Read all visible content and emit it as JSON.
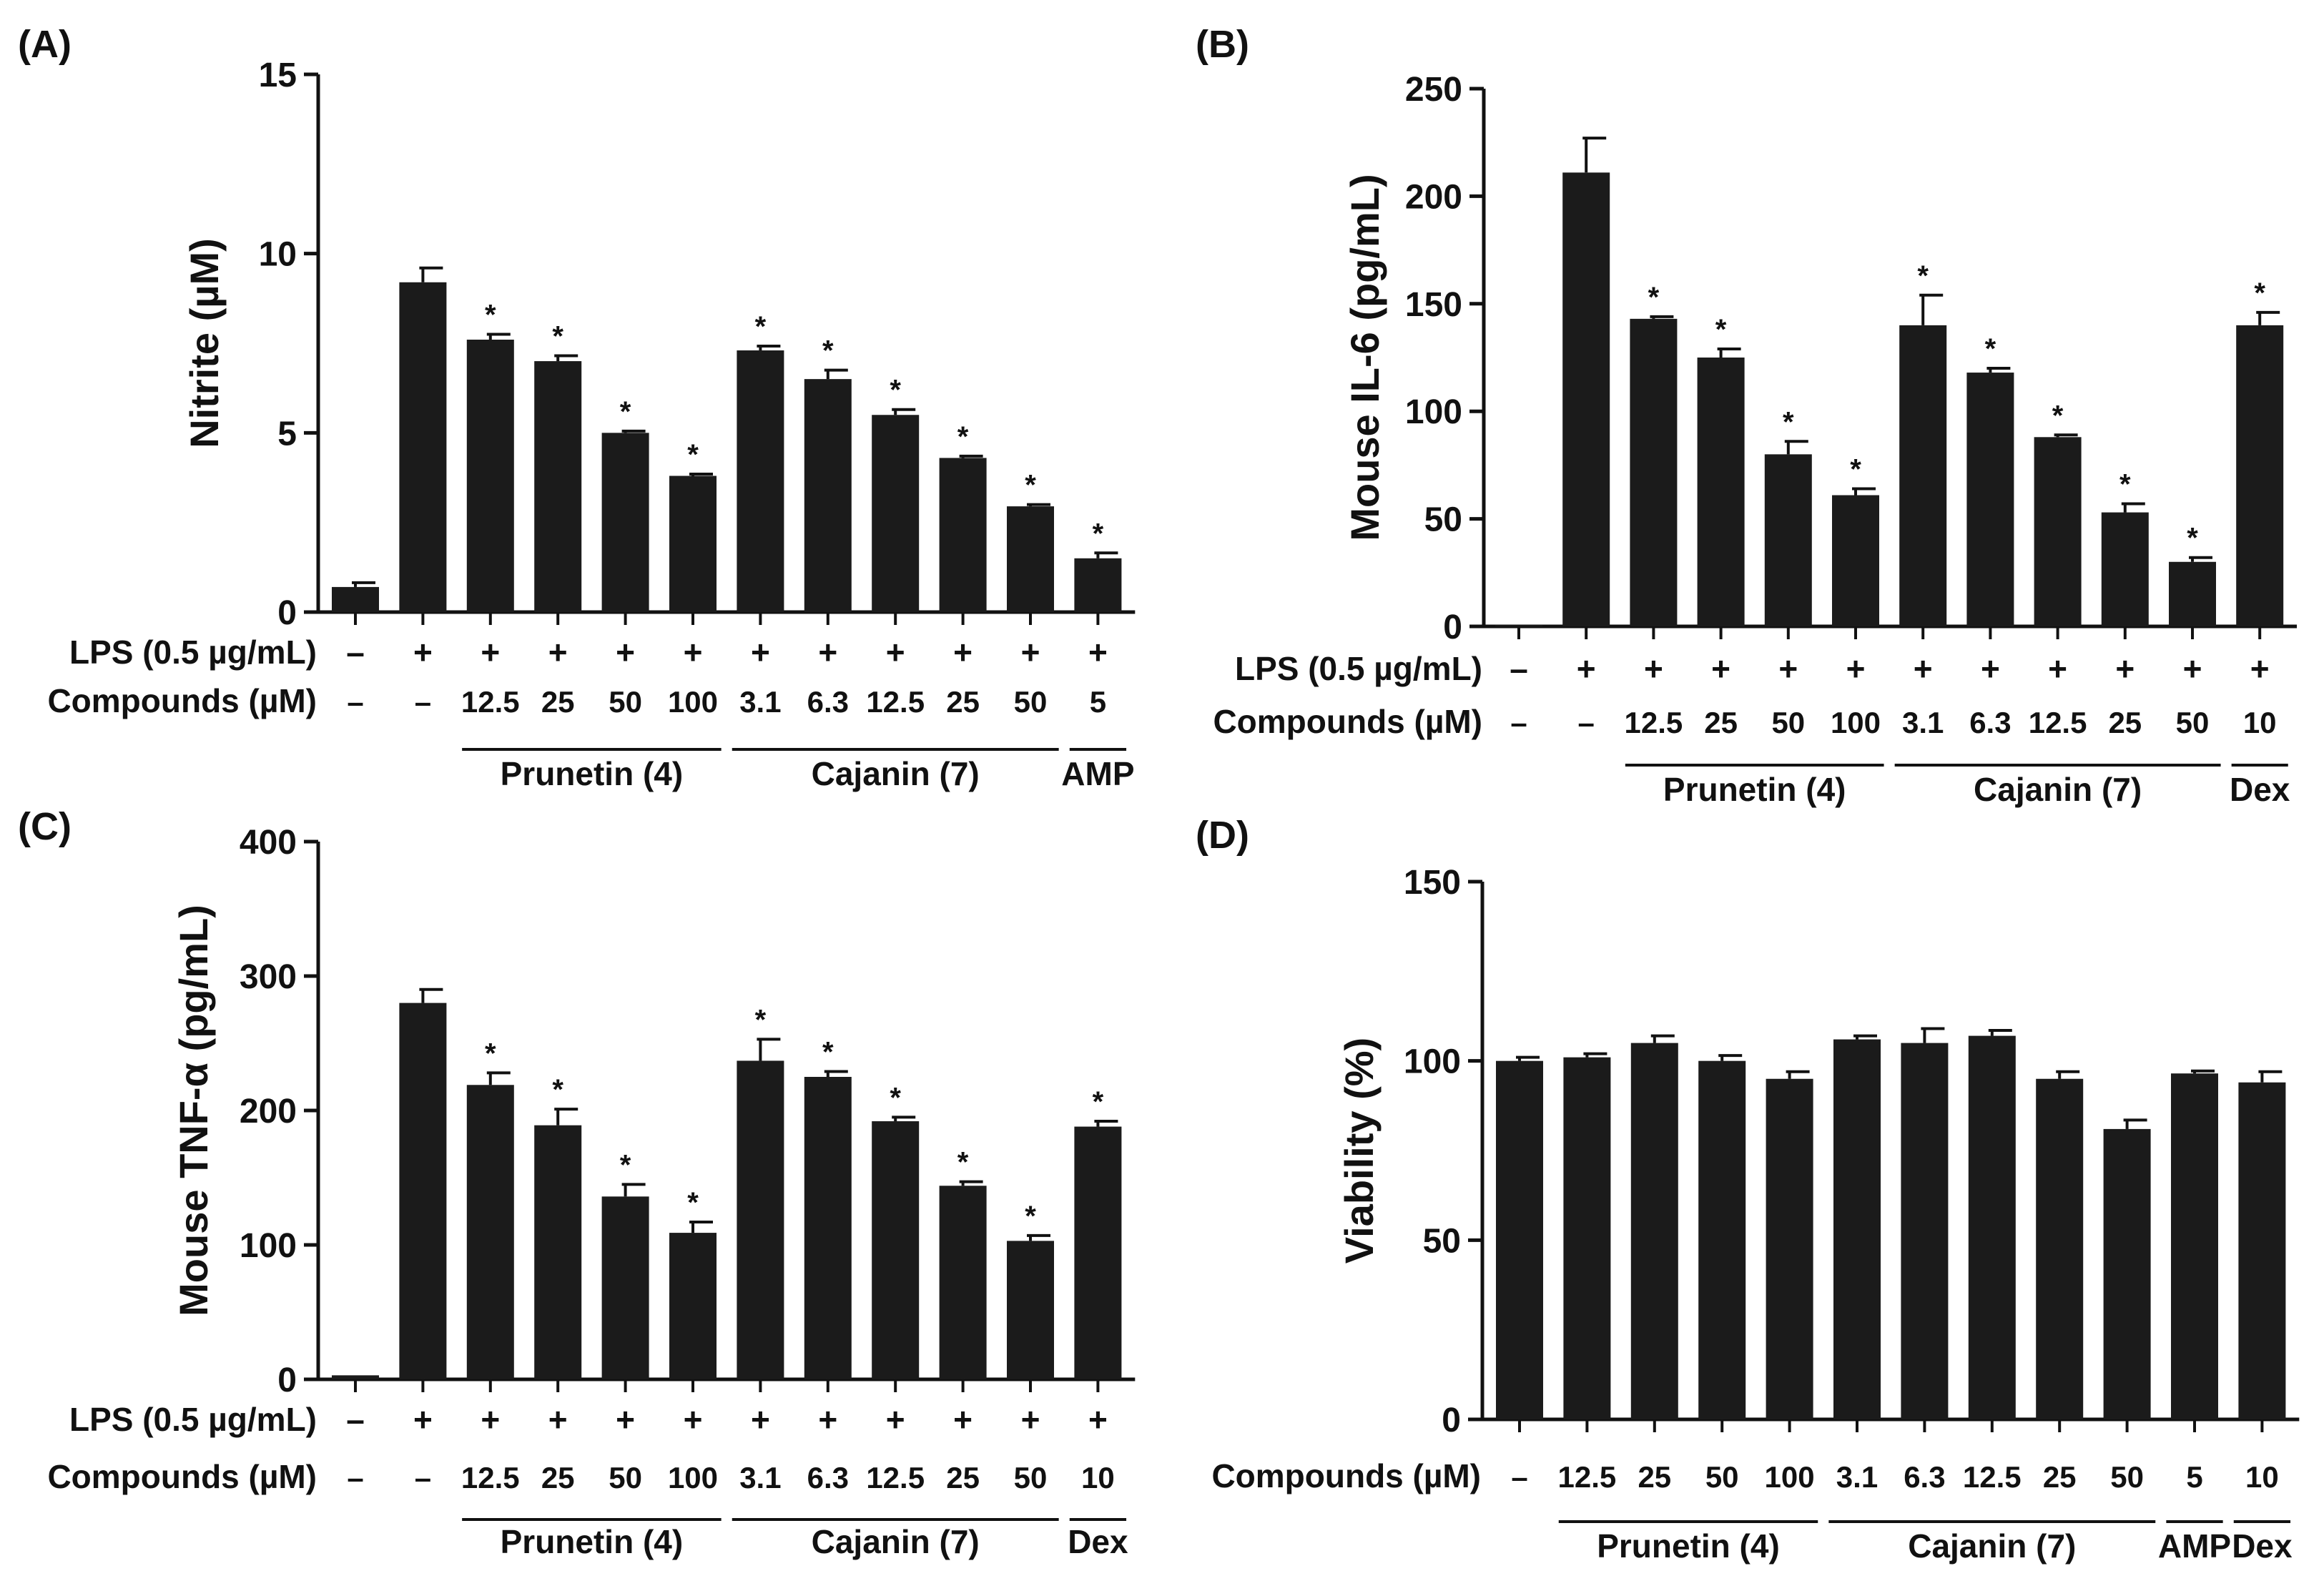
{
  "figure": {
    "colors": {
      "ink": "#111111",
      "bar": "#1b1b1b",
      "background": "#ffffff"
    },
    "lps_label": "LPS (0.5 µg/mL)",
    "compounds_label": "Compounds (µM)",
    "significance_marker": "*"
  },
  "chart_data": [
    {
      "panel": "(A)",
      "type": "bar",
      "ylabel": "Nitrite (µM)",
      "ylim": [
        0,
        15
      ],
      "yticks": [
        0,
        5,
        10,
        15
      ],
      "has_lps_row": true,
      "lps": [
        "–",
        "+",
        "+",
        "+",
        "+",
        "+",
        "+",
        "+",
        "+",
        "+",
        "+",
        "+"
      ],
      "categories": [
        "–",
        "–",
        "12.5",
        "25",
        "50",
        "100",
        "3.1",
        "6.3",
        "12.5",
        "25",
        "50",
        "5"
      ],
      "values": [
        0.7,
        9.2,
        7.6,
        7.0,
        5.0,
        3.8,
        7.3,
        6.5,
        5.5,
        4.3,
        2.95,
        1.5
      ],
      "errors": [
        0.12,
        0.4,
        0.15,
        0.15,
        0.05,
        0.05,
        0.12,
        0.25,
        0.15,
        0.05,
        0.05,
        0.15
      ],
      "significant": [
        false,
        false,
        true,
        true,
        true,
        true,
        true,
        true,
        true,
        true,
        true,
        true
      ],
      "groups": [
        {
          "label": "Prunetin (4)",
          "from": 2,
          "to": 5
        },
        {
          "label": "Cajanin (7)",
          "from": 6,
          "to": 10
        },
        {
          "label": "AMP",
          "from": 11,
          "to": 11
        }
      ]
    },
    {
      "panel": "(B)",
      "type": "bar",
      "ylabel": "Mouse IL-6 (pg/mL)",
      "ylim": [
        0,
        250
      ],
      "yticks": [
        0,
        50,
        100,
        150,
        200,
        250
      ],
      "has_lps_row": true,
      "lps": [
        "–",
        "+",
        "+",
        "+",
        "+",
        "+",
        "+",
        "+",
        "+",
        "+",
        "+",
        "+"
      ],
      "categories": [
        "–",
        "–",
        "12.5",
        "25",
        "50",
        "100",
        "3.1",
        "6.3",
        "12.5",
        "25",
        "50",
        "10"
      ],
      "values": [
        0.5,
        211,
        143,
        125,
        80,
        61,
        140,
        118,
        88,
        53,
        30,
        140
      ],
      "errors": [
        0,
        16,
        1,
        4,
        6,
        3,
        14,
        2,
        1,
        4,
        2,
        6
      ],
      "significant": [
        false,
        false,
        true,
        true,
        true,
        true,
        true,
        true,
        true,
        true,
        true,
        true
      ],
      "groups": [
        {
          "label": "Prunetin (4)",
          "from": 2,
          "to": 5
        },
        {
          "label": "Cajanin (7)",
          "from": 6,
          "to": 10
        },
        {
          "label": "Dex",
          "from": 11,
          "to": 11
        }
      ]
    },
    {
      "panel": "(C)",
      "type": "bar",
      "ylabel": "Mouse TNF-α (pg/mL)",
      "ylim": [
        0,
        400
      ],
      "yticks": [
        0,
        100,
        200,
        300,
        400
      ],
      "has_lps_row": true,
      "lps": [
        "–",
        "+",
        "+",
        "+",
        "+",
        "+",
        "+",
        "+",
        "+",
        "+",
        "+",
        "+"
      ],
      "categories": [
        "–",
        "–",
        "12.5",
        "25",
        "50",
        "100",
        "3.1",
        "6.3",
        "12.5",
        "25",
        "50",
        "10"
      ],
      "values": [
        3,
        280,
        219,
        189,
        136,
        109,
        237,
        225,
        192,
        144,
        103,
        188
      ],
      "errors": [
        0,
        10,
        9,
        12,
        9,
        8,
        16,
        4,
        3,
        3,
        4,
        4
      ],
      "significant": [
        false,
        false,
        true,
        true,
        true,
        true,
        true,
        true,
        true,
        true,
        true,
        true
      ],
      "groups": [
        {
          "label": "Prunetin (4)",
          "from": 2,
          "to": 5
        },
        {
          "label": "Cajanin (7)",
          "from": 6,
          "to": 10
        },
        {
          "label": "Dex",
          "from": 11,
          "to": 11
        }
      ]
    },
    {
      "panel": "(D)",
      "type": "bar",
      "ylabel": "Viability (%)",
      "ylim": [
        0,
        150
      ],
      "yticks": [
        0,
        50,
        100,
        150
      ],
      "has_lps_row": false,
      "categories": [
        "–",
        "12.5",
        "25",
        "50",
        "100",
        "3.1",
        "6.3",
        "12.5",
        "25",
        "50",
        "5",
        "10"
      ],
      "values": [
        100,
        101,
        105,
        100,
        95,
        106,
        105,
        107,
        95,
        81,
        96.5,
        94
      ],
      "errors": [
        1,
        1,
        2,
        1.5,
        2,
        1,
        4,
        1.5,
        2,
        2.5,
        0.7,
        3
      ],
      "significant": [
        false,
        false,
        false,
        false,
        false,
        false,
        false,
        false,
        false,
        false,
        false,
        false
      ],
      "groups": [
        {
          "label": "Prunetin (4)",
          "from": 1,
          "to": 4
        },
        {
          "label": "Cajanin (7)",
          "from": 5,
          "to": 9
        },
        {
          "label": "AMP",
          "from": 10,
          "to": 10
        },
        {
          "label": "Dex",
          "from": 11,
          "to": 11
        }
      ]
    }
  ]
}
